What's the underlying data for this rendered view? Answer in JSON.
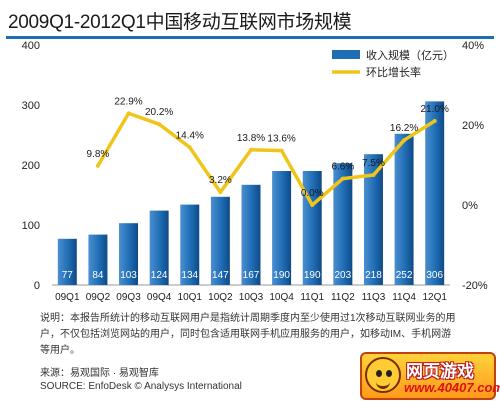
{
  "chart_data": {
    "type": "bar",
    "title": "2009Q1-2012Q1中国移动互联网市场规模",
    "categories": [
      "09Q1",
      "09Q2",
      "09Q3",
      "09Q4",
      "10Q1",
      "10Q2",
      "10Q3",
      "10Q4",
      "11Q1",
      "11Q2",
      "11Q3",
      "11Q4",
      "12Q1"
    ],
    "series": [
      {
        "name": "收入规模（亿元）",
        "type": "bar",
        "axis": "left",
        "values": [
          77,
          84,
          103,
          124,
          134,
          147,
          167,
          190,
          190,
          203,
          218,
          252,
          306
        ],
        "value_labels": [
          "77",
          "84",
          "103",
          "124",
          "134",
          "147",
          "167",
          "190",
          "190",
          "203",
          "218",
          "252",
          "306"
        ],
        "color": "#1f6db5"
      },
      {
        "name": "环比增长率",
        "type": "line",
        "axis": "right",
        "values": [
          null,
          9.8,
          22.9,
          20.2,
          14.4,
          3.2,
          13.8,
          13.6,
          0.0,
          6.6,
          7.5,
          16.2,
          21.0
        ],
        "value_labels": [
          "",
          "9.8%",
          "22.9%",
          "20.2%",
          "14.4%",
          "3.2%",
          "13.8%",
          "13.6%",
          "0.0%",
          "6.6%",
          "7.5%",
          "16.2%",
          "21.0%"
        ],
        "color": "#f0c419"
      }
    ],
    "y_left": {
      "min": 0,
      "max": 400,
      "ticks": [
        0,
        100,
        200,
        300,
        400
      ],
      "tick_labels": [
        "0",
        "100",
        "200",
        "300",
        "400"
      ]
    },
    "y_right": {
      "min": -20,
      "max": 40,
      "ticks": [
        -20,
        0,
        20,
        40
      ],
      "tick_labels": [
        "-20%",
        "0%",
        "20%",
        "40%"
      ]
    },
    "grid": false,
    "legend_position": "top-right"
  },
  "note": "说明：本报告所统计的移动互联网用户是指统计周期季度内至少使用过1次移动互联网业务的用户，不仅包括浏览网站的用户，同时包含适用联网手机应用服务的用户，如移动IM、手机网游等用户。",
  "source_cn": "来源：易观国际 · 易观智库",
  "source_en": "SOURCE: EnfoDesk © Analysys International",
  "watermark": {
    "top": "网页游戏",
    "bottom": "www.40407.com"
  }
}
